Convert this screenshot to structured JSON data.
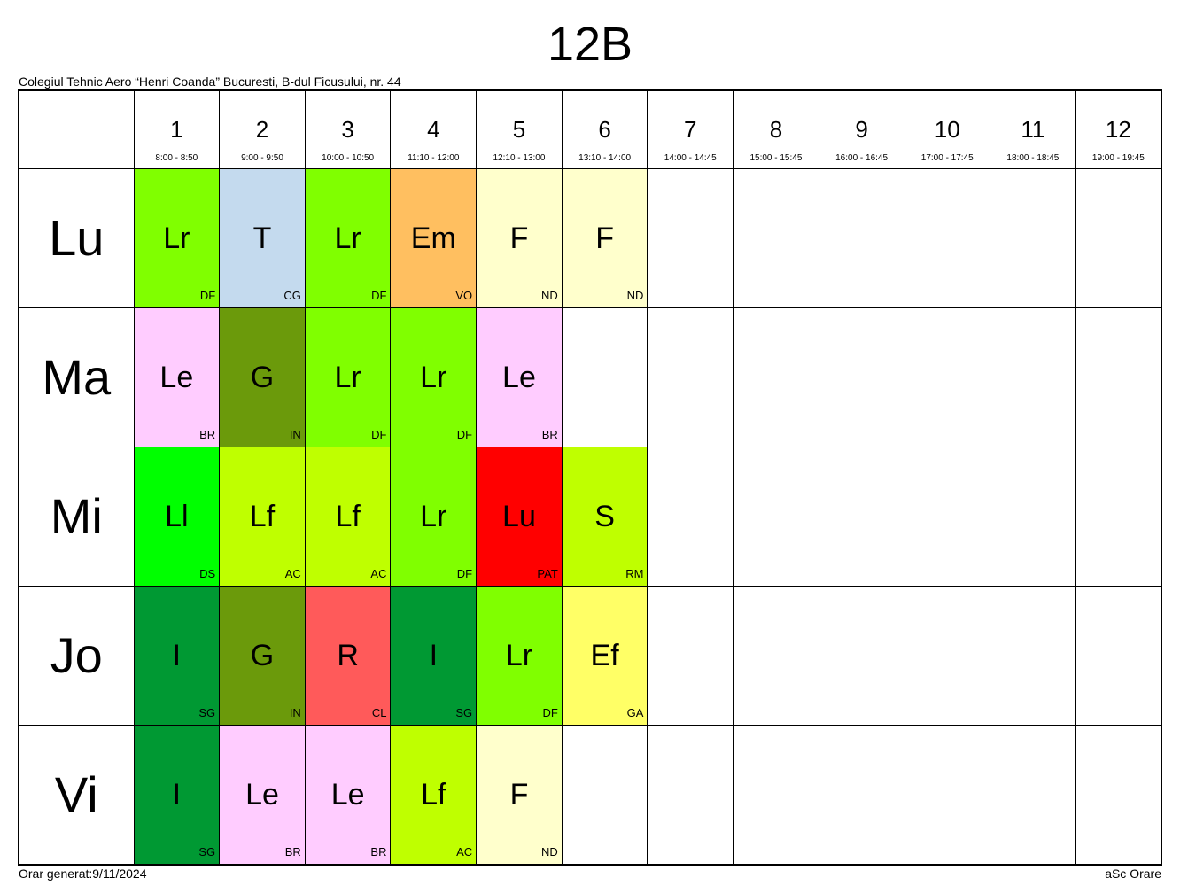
{
  "title": "12B",
  "school": "Colegiul Tehnic Aero “Henri Coanda” Bucuresti, B-dul Ficusului, nr. 44",
  "footer": {
    "generated": "Orar generat:9/11/2024",
    "brand": "aSc Orare"
  },
  "periods": [
    {
      "num": "1",
      "time": "8:00 - 8:50"
    },
    {
      "num": "2",
      "time": "9:00 - 9:50"
    },
    {
      "num": "3",
      "time": "10:00 - 10:50"
    },
    {
      "num": "4",
      "time": "11:10 - 12:00"
    },
    {
      "num": "5",
      "time": "12:10 - 13:00"
    },
    {
      "num": "6",
      "time": "13:10 - 14:00"
    },
    {
      "num": "7",
      "time": "14:00 - 14:45"
    },
    {
      "num": "8",
      "time": "15:00 - 15:45"
    },
    {
      "num": "9",
      "time": "16:00 - 16:45"
    },
    {
      "num": "10",
      "time": "17:00 - 17:45"
    },
    {
      "num": "11",
      "time": "18:00 - 18:45"
    },
    {
      "num": "12",
      "time": "19:00 - 19:45"
    }
  ],
  "days": [
    {
      "name": "Lu",
      "lessons": [
        {
          "subject": "Lr",
          "teacher": "DF",
          "color": "#80ff00"
        },
        {
          "subject": "T",
          "teacher": "CG",
          "color": "#c4daee"
        },
        {
          "subject": "Lr",
          "teacher": "DF",
          "color": "#80ff00"
        },
        {
          "subject": "Em",
          "teacher": "VO",
          "color": "#ffbf60"
        },
        {
          "subject": "F",
          "teacher": "ND",
          "color": "#ffffcc"
        },
        {
          "subject": "F",
          "teacher": "ND",
          "color": "#ffffcc"
        }
      ]
    },
    {
      "name": "Ma",
      "lessons": [
        {
          "subject": "Le",
          "teacher": "BR",
          "color": "#ffccff"
        },
        {
          "subject": "G",
          "teacher": "IN",
          "color": "#6b9a0b"
        },
        {
          "subject": "Lr",
          "teacher": "DF",
          "color": "#80ff00"
        },
        {
          "subject": "Lr",
          "teacher": "DF",
          "color": "#80ff00"
        },
        {
          "subject": "Le",
          "teacher": "BR",
          "color": "#ffccff"
        }
      ]
    },
    {
      "name": "Mi",
      "lessons": [
        {
          "subject": "Ll",
          "teacher": "DS",
          "color": "#00ff00"
        },
        {
          "subject": "Lf",
          "teacher": "AC",
          "color": "#bfff00"
        },
        {
          "subject": "Lf",
          "teacher": "AC",
          "color": "#bfff00"
        },
        {
          "subject": "Lr",
          "teacher": "DF",
          "color": "#80ff00"
        },
        {
          "subject": "Lu",
          "teacher": "PAT",
          "color": "#ff0000"
        },
        {
          "subject": "S",
          "teacher": "RM",
          "color": "#bfff00"
        }
      ]
    },
    {
      "name": "Jo",
      "lessons": [
        {
          "subject": "I",
          "teacher": "SG",
          "color": "#009933"
        },
        {
          "subject": "G",
          "teacher": "IN",
          "color": "#6b9a0b"
        },
        {
          "subject": "R",
          "teacher": "CL",
          "color": "#ff5a5a"
        },
        {
          "subject": "I",
          "teacher": "SG",
          "color": "#009933"
        },
        {
          "subject": "Lr",
          "teacher": "DF",
          "color": "#80ff00"
        },
        {
          "subject": "Ef",
          "teacher": "GA",
          "color": "#ffff66"
        }
      ]
    },
    {
      "name": "Vi",
      "lessons": [
        {
          "subject": "I",
          "teacher": "SG",
          "color": "#009933"
        },
        {
          "subject": "Le",
          "teacher": "BR",
          "color": "#ffccff"
        },
        {
          "subject": "Le",
          "teacher": "BR",
          "color": "#ffccff"
        },
        {
          "subject": "Lf",
          "teacher": "AC",
          "color": "#bfff00"
        },
        {
          "subject": "F",
          "teacher": "ND",
          "color": "#ffffcc"
        }
      ]
    }
  ]
}
